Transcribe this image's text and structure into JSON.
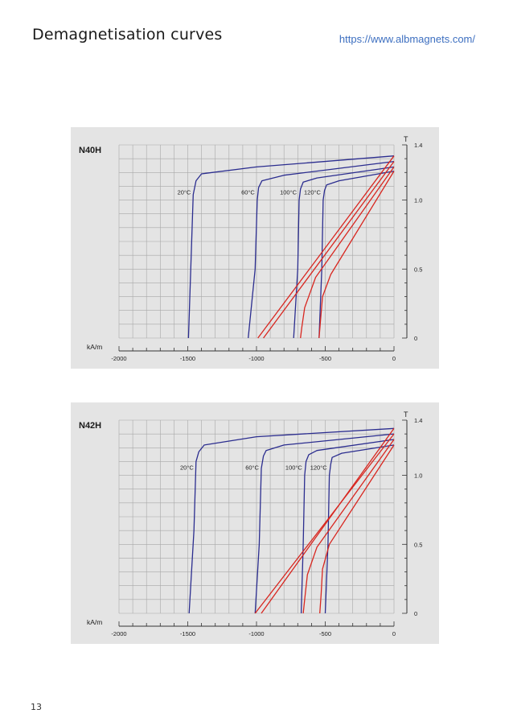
{
  "page": {
    "title": "Demagnetisation curves",
    "url": "https://www.albmagnets.com/",
    "page_number": "13"
  },
  "colors": {
    "intrinsic": "#2b2d8f",
    "normal": "#d8261f",
    "grid": "#a8a8a8",
    "panel": "#e4e4e4"
  },
  "chart_data": [
    {
      "type": "line",
      "title": "N40H",
      "xlabel": "kA/m",
      "ylabel": "T",
      "xlim": [
        -2000,
        0
      ],
      "ylim": [
        0,
        1.4
      ],
      "x_ticks": [
        "-2000",
        "-1500",
        "-1000",
        "-500",
        "0"
      ],
      "y_ticks": [
        "0",
        "0.5",
        "1.0",
        "1.4"
      ],
      "grid": true,
      "temperature_labels": [
        "20°C",
        "60°C",
        "100°C",
        "120°C"
      ],
      "series": [
        {
          "kind": "intrinsic",
          "temp": "20°C",
          "points": [
            [
              0,
              1.32
            ],
            [
              -1000,
              1.24
            ],
            [
              -1400,
              1.19
            ],
            [
              -1440,
              1.14
            ],
            [
              -1460,
              1.04
            ],
            [
              -1475,
              0.6
            ],
            [
              -1495,
              0
            ]
          ]
        },
        {
          "kind": "intrinsic",
          "temp": "60°C",
          "points": [
            [
              0,
              1.28
            ],
            [
              -800,
              1.18
            ],
            [
              -960,
              1.14
            ],
            [
              -985,
              1.09
            ],
            [
              -995,
              1.0
            ],
            [
              -1010,
              0.5
            ],
            [
              -1060,
              0
            ]
          ]
        },
        {
          "kind": "intrinsic",
          "temp": "100°C",
          "points": [
            [
              0,
              1.24
            ],
            [
              -560,
              1.16
            ],
            [
              -660,
              1.13
            ],
            [
              -680,
              1.08
            ],
            [
              -690,
              1.0
            ],
            [
              -700,
              0.5
            ],
            [
              -730,
              0
            ]
          ]
        },
        {
          "kind": "intrinsic",
          "temp": "120°C",
          "points": [
            [
              0,
              1.21
            ],
            [
              -400,
              1.14
            ],
            [
              -490,
              1.11
            ],
            [
              -505,
              1.07
            ],
            [
              -515,
              1.0
            ],
            [
              -525,
              0.5
            ],
            [
              -545,
              0
            ]
          ]
        },
        {
          "kind": "normal",
          "temp": "20°C",
          "points": [
            [
              0,
              1.32
            ],
            [
              -990,
              0
            ]
          ]
        },
        {
          "kind": "normal",
          "temp": "60°C",
          "points": [
            [
              0,
              1.28
            ],
            [
              -950,
              0
            ]
          ]
        },
        {
          "kind": "normal",
          "temp": "100°C",
          "points": [
            [
              0,
              1.24
            ],
            [
              -570,
              0.44
            ],
            [
              -650,
              0.22
            ],
            [
              -670,
              0.08
            ],
            [
              -680,
              0
            ]
          ]
        },
        {
          "kind": "normal",
          "temp": "120°C",
          "points": [
            [
              0,
              1.21
            ],
            [
              -460,
              0.46
            ],
            [
              -520,
              0.3
            ],
            [
              -535,
              0.12
            ],
            [
              -545,
              0
            ]
          ]
        }
      ]
    },
    {
      "type": "line",
      "title": "N42H",
      "xlabel": "kA/m",
      "ylabel": "T",
      "xlim": [
        -2000,
        0
      ],
      "ylim": [
        0,
        1.4
      ],
      "x_ticks": [
        "-2000",
        "-1500",
        "-1000",
        "-500",
        "0"
      ],
      "y_ticks": [
        "0",
        "0.5",
        "1.0",
        "1.4"
      ],
      "grid": true,
      "temperature_labels": [
        "20°C",
        "60°C",
        "100°C",
        "120°C"
      ],
      "series": [
        {
          "kind": "intrinsic",
          "temp": "20°C",
          "points": [
            [
              0,
              1.34
            ],
            [
              -1000,
              1.28
            ],
            [
              -1380,
              1.22
            ],
            [
              -1420,
              1.17
            ],
            [
              -1440,
              1.1
            ],
            [
              -1455,
              0.6
            ],
            [
              -1490,
              0
            ]
          ]
        },
        {
          "kind": "intrinsic",
          "temp": "60°C",
          "points": [
            [
              0,
              1.3
            ],
            [
              -800,
              1.22
            ],
            [
              -930,
              1.18
            ],
            [
              -950,
              1.14
            ],
            [
              -965,
              1.05
            ],
            [
              -980,
              0.5
            ],
            [
              -1010,
              0
            ]
          ]
        },
        {
          "kind": "intrinsic",
          "temp": "100°C",
          "points": [
            [
              0,
              1.26
            ],
            [
              -560,
              1.18
            ],
            [
              -620,
              1.15
            ],
            [
              -640,
              1.1
            ],
            [
              -650,
              1.0
            ],
            [
              -660,
              0.5
            ],
            [
              -675,
              0
            ]
          ]
        },
        {
          "kind": "intrinsic",
          "temp": "120°C",
          "points": [
            [
              0,
              1.22
            ],
            [
              -380,
              1.16
            ],
            [
              -450,
              1.13
            ],
            [
              -460,
              1.08
            ],
            [
              -470,
              1.0
            ],
            [
              -480,
              0.5
            ],
            [
              -500,
              0
            ]
          ]
        },
        {
          "kind": "normal",
          "temp": "20°C",
          "points": [
            [
              0,
              1.34
            ],
            [
              -965,
              0
            ]
          ]
        },
        {
          "kind": "normal",
          "temp": "60°C",
          "points": [
            [
              0,
              1.3
            ],
            [
              -1010,
              0
            ]
          ]
        },
        {
          "kind": "normal",
          "temp": "100°C",
          "points": [
            [
              0,
              1.26
            ],
            [
              -560,
              0.48
            ],
            [
              -630,
              0.28
            ],
            [
              -650,
              0.1
            ],
            [
              -660,
              0
            ]
          ]
        },
        {
          "kind": "normal",
          "temp": "120°C",
          "points": [
            [
              0,
              1.22
            ],
            [
              -470,
              0.5
            ],
            [
              -520,
              0.32
            ],
            [
              -530,
              0.14
            ],
            [
              -540,
              0
            ]
          ]
        }
      ]
    }
  ]
}
